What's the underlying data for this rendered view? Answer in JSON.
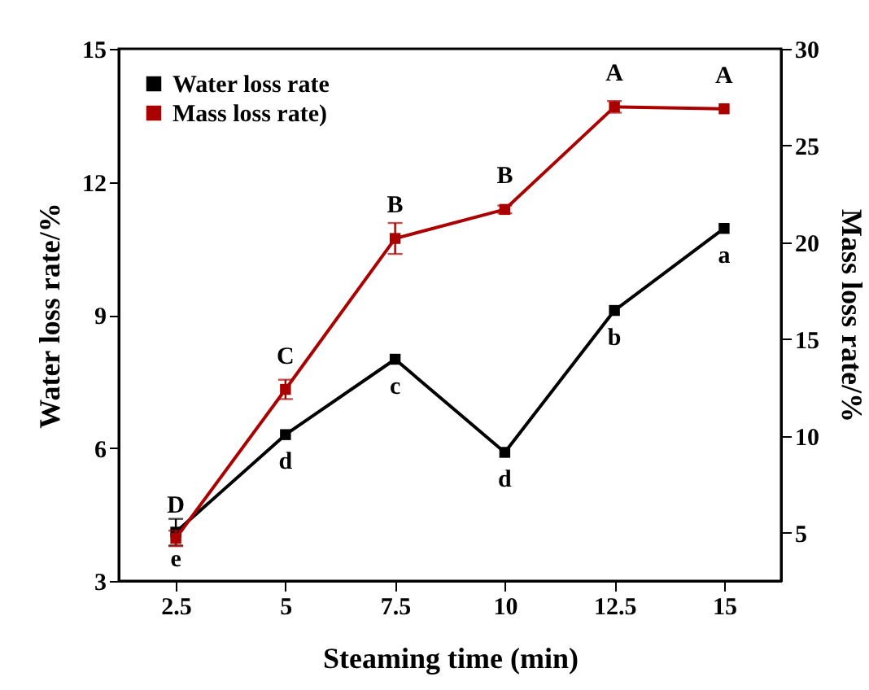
{
  "chart_data": {
    "type": "line",
    "xlabel": "Steaming time (min)",
    "ylabel": "Water loss rate/%",
    "y2label": "Mass loss rate/%",
    "x": [
      2.5,
      5,
      7.5,
      10,
      12.5,
      15
    ],
    "xlim": [
      1.2,
      16.3
    ],
    "xticks": [
      2.5,
      5,
      7.5,
      10,
      12.5,
      15
    ],
    "ylim": [
      3,
      15
    ],
    "yticks": [
      3,
      6,
      9,
      12,
      15
    ],
    "y2lim": [
      2.5,
      30
    ],
    "y2ticks": [
      5,
      10,
      15,
      20,
      25,
      30
    ],
    "series": [
      {
        "name": "Water loss rate",
        "color": "#000000",
        "values": [
          4.1,
          6.3,
          8.0,
          5.9,
          9.1,
          10.95
        ],
        "errors": [
          0.3,
          null,
          null,
          null,
          null,
          null
        ],
        "value_labels": [
          "e",
          "d",
          "c",
          "d",
          "b",
          "a"
        ]
      },
      {
        "name": "Mass loss rate)",
        "color": "#aa0000",
        "axis": "y2",
        "values": [
          4.7,
          12.4,
          20.2,
          21.7,
          27.0,
          26.9
        ],
        "errors": [
          0.4,
          0.5,
          0.8,
          0.2,
          0.3,
          null
        ],
        "value_labels": [
          "D",
          "C",
          "B",
          "B",
          "A",
          "A"
        ]
      }
    ],
    "legend": "top left",
    "marker": "square",
    "line_style": "solid",
    "grid": false
  }
}
